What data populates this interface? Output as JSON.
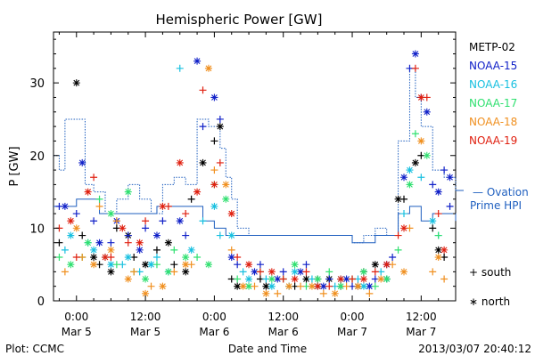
{
  "chart_data": {
    "type": "scatter",
    "title": "Hemispheric Power [GW]",
    "ylabel": "P [GW]",
    "xlabel": "Date and Time",
    "ylim": [
      0,
      37
    ],
    "yticks": [
      0,
      10,
      20,
      30
    ],
    "xlim_hours": [
      -4,
      66
    ],
    "xticks": [
      {
        "hour": 0,
        "time": "0:00",
        "date": "Mar 5"
      },
      {
        "hour": 12,
        "time": "12:00",
        "date": "Mar 5"
      },
      {
        "hour": 24,
        "time": "0:00",
        "date": "Mar 6"
      },
      {
        "hour": 36,
        "time": "12:00",
        "date": "Mar 6"
      },
      {
        "hour": 48,
        "time": "0:00",
        "date": "Mar 7"
      },
      {
        "hour": 60,
        "time": "12:00",
        "date": "Mar 7"
      }
    ],
    "grid": false,
    "legend": {
      "placement": "right",
      "satellites": [
        {
          "name": "METP-02",
          "color": "#000000"
        },
        {
          "name": "NOAA-15",
          "color": "#1020c8"
        },
        {
          "name": "NOAA-16",
          "color": "#18c0e0"
        },
        {
          "name": "NOAA-17",
          "color": "#30e070"
        },
        {
          "name": "NOAA-18",
          "color": "#f09020"
        },
        {
          "name": "NOAA-19",
          "color": "#e02010"
        }
      ],
      "ovation_label_1": "— Ovation",
      "ovation_label_2": "Prime HPI",
      "ovation_color": "#1f5fbf",
      "marker_south": "+ south",
      "marker_north": "∗ north"
    },
    "ovation_south": [
      [
        -4,
        20
      ],
      [
        -3,
        18
      ],
      [
        -2,
        25
      ],
      [
        0,
        25
      ],
      [
        1.5,
        16
      ],
      [
        3,
        15
      ],
      [
        5,
        12
      ],
      [
        7,
        14
      ],
      [
        9,
        16
      ],
      [
        11,
        14
      ],
      [
        13,
        12
      ],
      [
        15,
        16
      ],
      [
        17,
        17
      ],
      [
        19,
        16
      ],
      [
        21,
        25
      ],
      [
        23,
        24
      ],
      [
        25,
        21
      ],
      [
        26,
        17
      ],
      [
        27,
        14
      ],
      [
        28,
        10
      ],
      [
        30,
        9
      ],
      [
        40,
        9
      ],
      [
        48,
        8
      ],
      [
        50,
        9
      ],
      [
        52,
        10
      ],
      [
        54,
        9
      ],
      [
        56,
        22
      ],
      [
        58,
        32
      ],
      [
        59,
        28
      ],
      [
        60,
        24
      ],
      [
        62,
        18
      ],
      [
        64,
        17
      ],
      [
        66,
        15
      ]
    ],
    "ovation_north": [
      [
        -4,
        13
      ],
      [
        0,
        14
      ],
      [
        2,
        14
      ],
      [
        4,
        12
      ],
      [
        6,
        12
      ],
      [
        10,
        12
      ],
      [
        14,
        13
      ],
      [
        18,
        13
      ],
      [
        22,
        11
      ],
      [
        24,
        10
      ],
      [
        26,
        9
      ],
      [
        28,
        9
      ],
      [
        36,
        9
      ],
      [
        48,
        8
      ],
      [
        52,
        9
      ],
      [
        56,
        12
      ],
      [
        58,
        13
      ],
      [
        60,
        11
      ],
      [
        62,
        12
      ],
      [
        64,
        12
      ],
      [
        66,
        11
      ]
    ],
    "series": [
      {
        "name": "METP-02",
        "south": [
          [
            -3,
            8
          ],
          [
            1,
            9
          ],
          [
            4,
            5
          ],
          [
            7,
            10
          ],
          [
            10,
            6
          ],
          [
            14,
            7
          ],
          [
            17,
            5
          ],
          [
            20,
            14
          ],
          [
            24,
            22
          ],
          [
            27,
            3
          ],
          [
            32,
            3
          ],
          [
            38,
            2
          ],
          [
            42,
            3
          ],
          [
            46,
            2
          ],
          [
            50,
            4
          ],
          [
            54,
            3
          ],
          [
            57,
            14
          ],
          [
            60,
            20
          ],
          [
            62,
            10
          ],
          [
            64,
            6
          ]
        ],
        "north": [
          [
            0,
            30
          ],
          [
            3,
            6
          ],
          [
            6,
            4
          ],
          [
            9,
            9
          ],
          [
            12,
            5
          ],
          [
            16,
            8
          ],
          [
            19,
            4
          ],
          [
            22,
            19
          ],
          [
            25,
            24
          ],
          [
            28,
            2
          ],
          [
            33,
            2
          ],
          [
            40,
            3
          ],
          [
            44,
            3
          ],
          [
            49,
            2
          ],
          [
            52,
            5
          ],
          [
            56,
            14
          ],
          [
            59,
            19
          ],
          [
            63,
            7
          ]
        ]
      },
      {
        "name": "NOAA-15",
        "south": [
          [
            -3,
            13
          ],
          [
            0,
            12
          ],
          [
            3,
            11
          ],
          [
            6,
            8
          ],
          [
            9,
            9
          ],
          [
            12,
            10
          ],
          [
            15,
            11
          ],
          [
            19,
            9
          ],
          [
            22,
            24
          ],
          [
            25,
            25
          ],
          [
            28,
            5
          ],
          [
            32,
            5
          ],
          [
            36,
            4
          ],
          [
            40,
            5
          ],
          [
            44,
            3
          ],
          [
            48,
            2
          ],
          [
            52,
            3
          ],
          [
            55,
            6
          ],
          [
            58,
            32
          ],
          [
            60,
            28
          ],
          [
            62,
            16
          ],
          [
            64,
            18
          ],
          [
            65,
            13
          ]
        ],
        "north": [
          [
            -2,
            13
          ],
          [
            1,
            19
          ],
          [
            4,
            8
          ],
          [
            7,
            11
          ],
          [
            11,
            7
          ],
          [
            14,
            9
          ],
          [
            18,
            11
          ],
          [
            21,
            33
          ],
          [
            24,
            28
          ],
          [
            27,
            6
          ],
          [
            31,
            4
          ],
          [
            35,
            3
          ],
          [
            39,
            4
          ],
          [
            43,
            2
          ],
          [
            47,
            3
          ],
          [
            51,
            2
          ],
          [
            54,
            5
          ],
          [
            57,
            17
          ],
          [
            59,
            34
          ],
          [
            61,
            26
          ],
          [
            63,
            15
          ],
          [
            65,
            17
          ]
        ]
      },
      {
        "name": "NOAA-16",
        "south": [
          [
            -2,
            7
          ],
          [
            2,
            8
          ],
          [
            5,
            6
          ],
          [
            8,
            5
          ],
          [
            11,
            4
          ],
          [
            14,
            6
          ],
          [
            18,
            32
          ],
          [
            22,
            11
          ],
          [
            25,
            9
          ],
          [
            29,
            4
          ],
          [
            33,
            3
          ],
          [
            37,
            2
          ],
          [
            41,
            3
          ],
          [
            45,
            2
          ],
          [
            49,
            3
          ],
          [
            53,
            4
          ],
          [
            57,
            12
          ],
          [
            60,
            17
          ],
          [
            63,
            9
          ]
        ],
        "north": [
          [
            -1,
            9
          ],
          [
            3,
            7
          ],
          [
            6,
            5
          ],
          [
            9,
            6
          ],
          [
            13,
            5
          ],
          [
            16,
            4
          ],
          [
            20,
            7
          ],
          [
            24,
            13
          ],
          [
            27,
            9
          ],
          [
            30,
            3
          ],
          [
            34,
            2
          ],
          [
            38,
            4
          ],
          [
            42,
            2
          ],
          [
            46,
            3
          ],
          [
            50,
            2
          ],
          [
            54,
            3
          ],
          [
            58,
            18
          ],
          [
            62,
            11
          ]
        ]
      },
      {
        "name": "NOAA-17",
        "south": [
          [
            -3,
            6
          ],
          [
            1,
            6
          ],
          [
            4,
            14
          ],
          [
            7,
            5
          ],
          [
            10,
            4
          ],
          [
            14,
            5
          ],
          [
            17,
            7
          ],
          [
            21,
            6
          ],
          [
            24,
            16
          ],
          [
            28,
            3
          ],
          [
            32,
            4
          ],
          [
            36,
            3
          ],
          [
            40,
            2
          ],
          [
            44,
            4
          ],
          [
            48,
            3
          ],
          [
            52,
            2
          ],
          [
            56,
            7
          ],
          [
            59,
            23
          ],
          [
            63,
            9
          ]
        ],
        "north": [
          [
            -1,
            5
          ],
          [
            2,
            8
          ],
          [
            6,
            12
          ],
          [
            9,
            15
          ],
          [
            12,
            3
          ],
          [
            16,
            4
          ],
          [
            19,
            6
          ],
          [
            23,
            5
          ],
          [
            26,
            14
          ],
          [
            30,
            2
          ],
          [
            34,
            3
          ],
          [
            38,
            5
          ],
          [
            42,
            3
          ],
          [
            46,
            2
          ],
          [
            50,
            4
          ],
          [
            54,
            3
          ],
          [
            58,
            16
          ],
          [
            61,
            20
          ]
        ]
      },
      {
        "name": "NOAA-18",
        "south": [
          [
            -2,
            4
          ],
          [
            1,
            6
          ],
          [
            4,
            13
          ],
          [
            7,
            11
          ],
          [
            10,
            4
          ],
          [
            13,
            2
          ],
          [
            17,
            4
          ],
          [
            20,
            5
          ],
          [
            24,
            18
          ],
          [
            27,
            7
          ],
          [
            31,
            2
          ],
          [
            35,
            1
          ],
          [
            39,
            2
          ],
          [
            43,
            1
          ],
          [
            47,
            2
          ],
          [
            51,
            1
          ],
          [
            55,
            5
          ],
          [
            58,
            10
          ],
          [
            62,
            4
          ],
          [
            64,
            3
          ]
        ],
        "north": [
          [
            0,
            10
          ],
          [
            3,
            5
          ],
          [
            6,
            7
          ],
          [
            9,
            3
          ],
          [
            12,
            1
          ],
          [
            15,
            2
          ],
          [
            19,
            5
          ],
          [
            23,
            32
          ],
          [
            26,
            16
          ],
          [
            29,
            2
          ],
          [
            33,
            1
          ],
          [
            37,
            2
          ],
          [
            41,
            2
          ],
          [
            45,
            1
          ],
          [
            49,
            2
          ],
          [
            53,
            3
          ],
          [
            57,
            4
          ],
          [
            60,
            22
          ],
          [
            63,
            6
          ]
        ]
      },
      {
        "name": "NOAA-19",
        "south": [
          [
            -3,
            10
          ],
          [
            0,
            6
          ],
          [
            3,
            17
          ],
          [
            6,
            6
          ],
          [
            9,
            8
          ],
          [
            12,
            11
          ],
          [
            16,
            13
          ],
          [
            19,
            12
          ],
          [
            22,
            29
          ],
          [
            25,
            19
          ],
          [
            28,
            6
          ],
          [
            32,
            4
          ],
          [
            36,
            3
          ],
          [
            40,
            4
          ],
          [
            44,
            2
          ],
          [
            48,
            3
          ],
          [
            52,
            4
          ],
          [
            56,
            9
          ],
          [
            59,
            32
          ],
          [
            61,
            28
          ],
          [
            63,
            12
          ]
        ],
        "north": [
          [
            -1,
            11
          ],
          [
            2,
            15
          ],
          [
            5,
            6
          ],
          [
            8,
            10
          ],
          [
            11,
            8
          ],
          [
            15,
            13
          ],
          [
            18,
            19
          ],
          [
            21,
            15
          ],
          [
            24,
            16
          ],
          [
            27,
            12
          ],
          [
            30,
            5
          ],
          [
            34,
            4
          ],
          [
            38,
            3
          ],
          [
            42,
            2
          ],
          [
            46,
            3
          ],
          [
            50,
            3
          ],
          [
            54,
            5
          ],
          [
            57,
            10
          ],
          [
            60,
            28
          ],
          [
            64,
            7
          ]
        ]
      }
    ]
  },
  "footer": {
    "plot_credit": "Plot: CCMC",
    "timestamp": "2013/03/07 20:40:12"
  }
}
